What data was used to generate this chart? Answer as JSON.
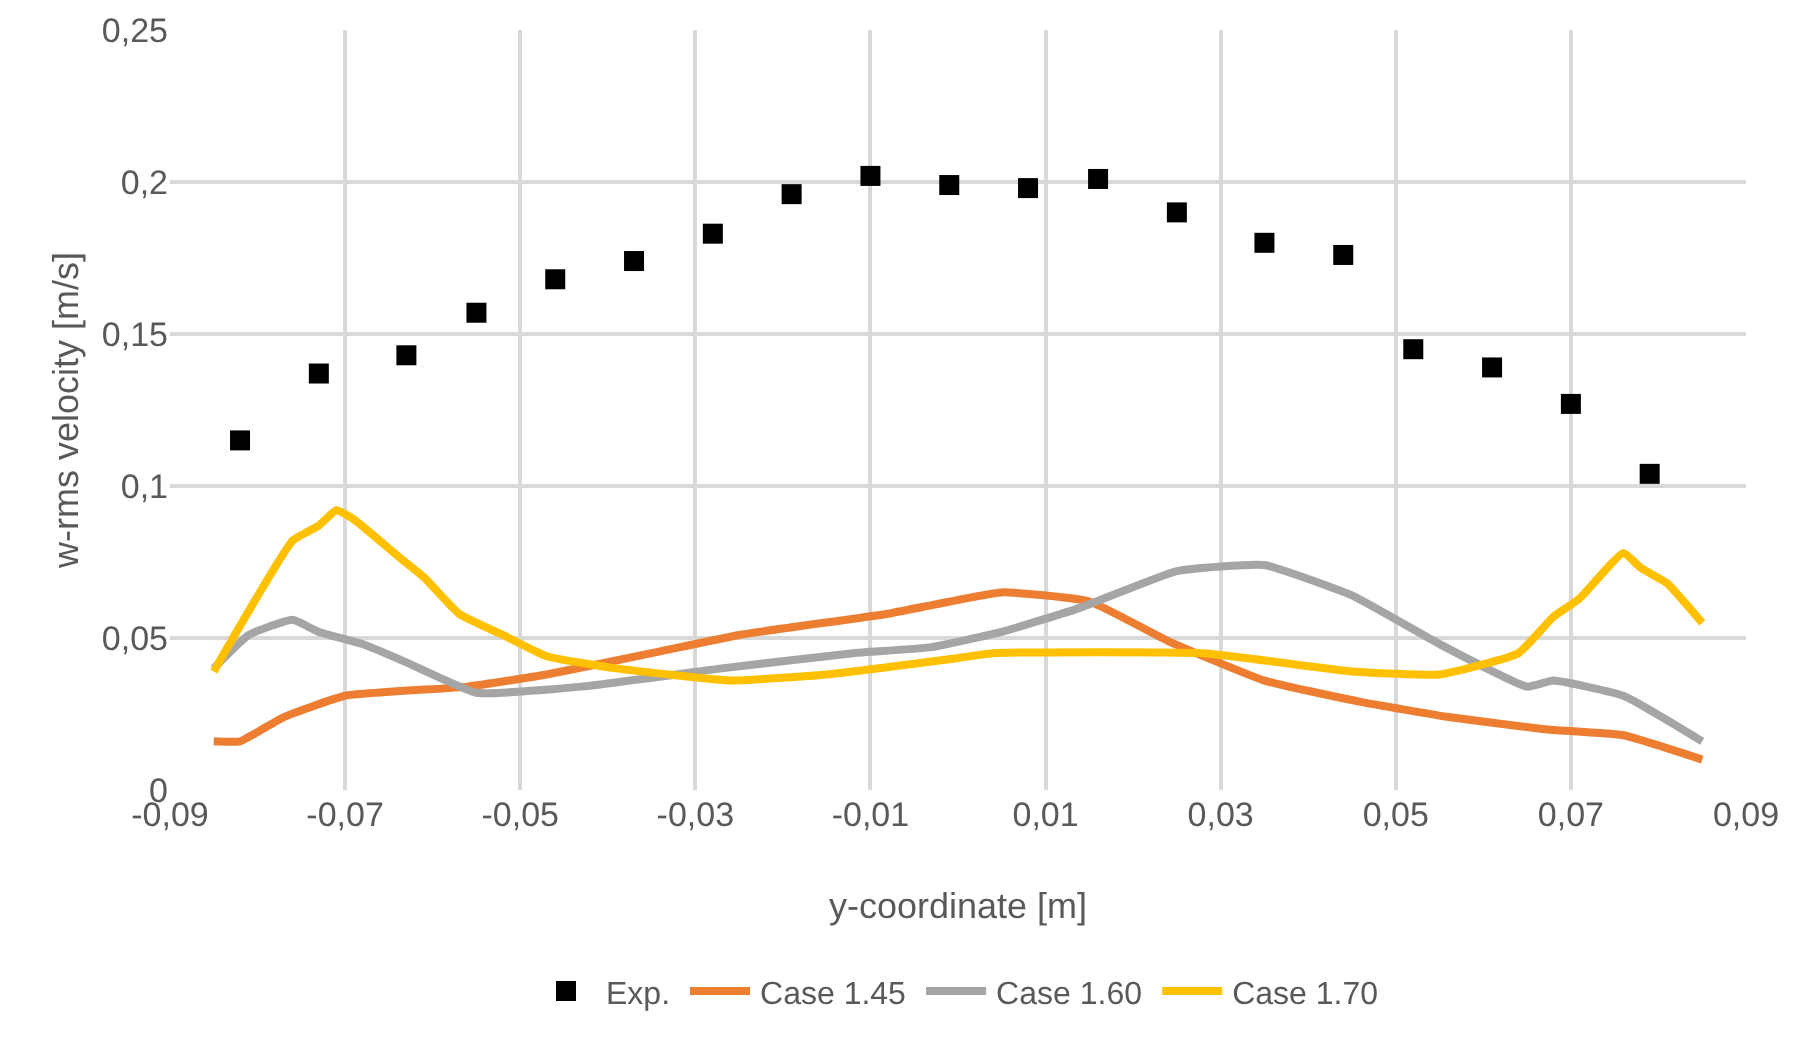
{
  "chart_data": {
    "type": "scatter",
    "xlabel": "y-coordinate [m]",
    "ylabel": "w-rms velocity [m/s]",
    "xlim": [
      -0.09,
      0.09
    ],
    "xticks": [
      {
        "value": -0.09,
        "label": "-0,09"
      },
      {
        "value": -0.07,
        "label": "-0,07"
      },
      {
        "value": -0.05,
        "label": "-0,05"
      },
      {
        "value": -0.03,
        "label": "-0,03"
      },
      {
        "value": -0.01,
        "label": "-0,01"
      },
      {
        "value": 0.01,
        "label": "0,01"
      },
      {
        "value": 0.03,
        "label": "0,03"
      },
      {
        "value": 0.05,
        "label": "0,05"
      },
      {
        "value": 0.07,
        "label": "0,07"
      },
      {
        "value": 0.09,
        "label": "0,09"
      }
    ],
    "ylim": [
      0,
      0.25
    ],
    "yticks": [
      0,
      {
        "value": 0.05,
        "label": "0,05"
      },
      {
        "value": 0.1,
        "label": "0,1"
      },
      {
        "value": 0.15,
        "label": "0,15"
      },
      {
        "value": 0.2,
        "label": "0,2"
      },
      {
        "value": 0.25,
        "label": "0,25"
      }
    ],
    "grid": true,
    "legend": "bottom",
    "series": [
      {
        "name": "Exp.",
        "marker": "square",
        "color": "#000000",
        "x": [
          -0.082,
          -0.073,
          -0.063,
          -0.055,
          -0.046,
          -0.037,
          -0.028,
          -0.019,
          -0.01,
          -0.001,
          0.008,
          0.016,
          0.025,
          0.035,
          0.044,
          0.052,
          0.061,
          0.07,
          0.079
        ],
        "values": [
          0.115,
          0.137,
          0.143,
          0.157,
          0.168,
          0.174,
          0.183,
          0.196,
          0.202,
          0.199,
          0.198,
          0.201,
          0.19,
          0.18,
          0.176,
          0.145,
          0.139,
          0.127,
          0.104
        ]
      },
      {
        "name": "Case 1.45",
        "type": "line",
        "color": "#ed7d31",
        "x": [
          -0.085,
          -0.082,
          -0.077,
          -0.07,
          -0.056,
          -0.047,
          -0.035,
          -0.025,
          -0.008,
          0.005,
          0.015,
          0.024,
          0.035,
          0.046,
          0.056,
          0.067,
          0.076,
          0.085
        ],
        "values": [
          0.016,
          0.016,
          0.024,
          0.031,
          0.034,
          0.038,
          0.045,
          0.051,
          0.058,
          0.065,
          0.062,
          0.049,
          0.036,
          0.029,
          0.024,
          0.02,
          0.018,
          0.01
        ]
      },
      {
        "name": "Case 1.60",
        "type": "line",
        "color": "#a5a5a5",
        "x": [
          -0.085,
          -0.081,
          -0.076,
          -0.073,
          -0.068,
          -0.063,
          -0.055,
          -0.043,
          -0.027,
          -0.012,
          -0.003,
          0.005,
          0.014,
          0.025,
          0.035,
          0.045,
          0.055,
          0.065,
          0.068,
          0.076,
          0.085
        ],
        "values": [
          0.04,
          0.051,
          0.056,
          0.052,
          0.048,
          0.042,
          0.032,
          0.034,
          0.04,
          0.045,
          0.047,
          0.052,
          0.06,
          0.072,
          0.074,
          0.064,
          0.048,
          0.034,
          0.036,
          0.031,
          0.016
        ]
      },
      {
        "name": "Case 1.70",
        "type": "line",
        "color": "#ffc000",
        "x": [
          -0.085,
          -0.082,
          -0.076,
          -0.073,
          -0.071,
          -0.069,
          -0.064,
          -0.061,
          -0.057,
          -0.052,
          -0.047,
          -0.039,
          -0.026,
          -0.015,
          -0.001,
          0.004,
          0.028,
          0.045,
          0.055,
          0.064,
          0.068,
          0.071,
          0.076,
          0.078,
          0.081,
          0.085
        ],
        "values": [
          0.039,
          0.054,
          0.082,
          0.087,
          0.092,
          0.089,
          0.077,
          0.07,
          0.058,
          0.051,
          0.044,
          0.04,
          0.036,
          0.038,
          0.043,
          0.045,
          0.045,
          0.039,
          0.038,
          0.045,
          0.057,
          0.063,
          0.078,
          0.073,
          0.068,
          0.055
        ]
      }
    ]
  }
}
